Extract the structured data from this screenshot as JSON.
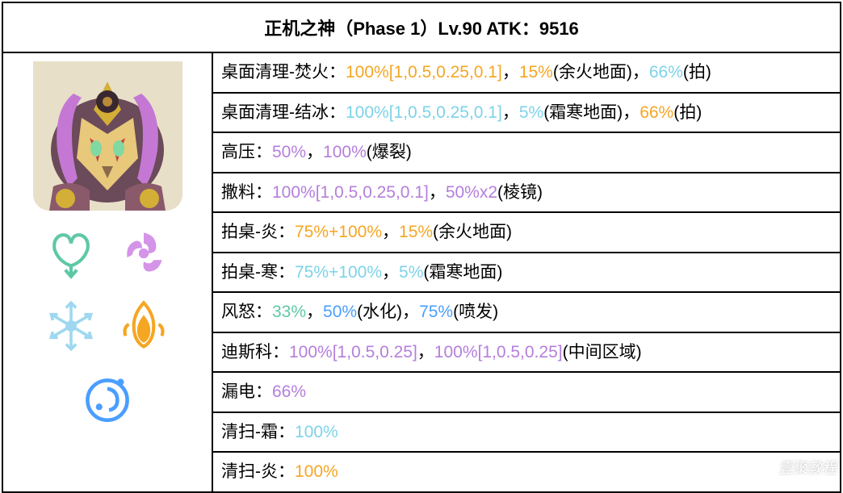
{
  "header": {
    "title": "正机之神（Phase 1）Lv.90 ATK：9516"
  },
  "colors": {
    "black": "#000000",
    "pyro": "#f5a623",
    "cryo": "#7dd3e8",
    "electro": "#b57edc",
    "anemo": "#5ec8a6",
    "hydro": "#4a9eff"
  },
  "elements": {
    "icons": [
      "anemo",
      "electro",
      "cryo",
      "pyro",
      "hydro"
    ],
    "icon_colors": {
      "anemo": "#5ec8a6",
      "electro": "#d494e8",
      "cryo": "#9ed8f0",
      "pyro": "#f5a623",
      "hydro": "#4a9eff"
    }
  },
  "skills": [
    {
      "name": "桌面清理-焚火：",
      "parts": [
        {
          "text": "100%[1,0.5,0.25,0.1]",
          "color": "pyro"
        },
        {
          "text": "，",
          "color": "black"
        },
        {
          "text": "15%",
          "color": "pyro"
        },
        {
          "text": "(余火地面)，",
          "color": "black"
        },
        {
          "text": "66%",
          "color": "cryo"
        },
        {
          "text": "(拍)",
          "color": "black"
        }
      ]
    },
    {
      "name": "桌面清理-结冰：",
      "parts": [
        {
          "text": "100%[1,0.5,0.25,0.1]",
          "color": "cryo"
        },
        {
          "text": "，",
          "color": "black"
        },
        {
          "text": "5%",
          "color": "cryo"
        },
        {
          "text": "(霜寒地面)，",
          "color": "black"
        },
        {
          "text": "66%",
          "color": "pyro"
        },
        {
          "text": "(拍)",
          "color": "black"
        }
      ]
    },
    {
      "name": "高压：",
      "parts": [
        {
          "text": "50%",
          "color": "electro"
        },
        {
          "text": "，",
          "color": "black"
        },
        {
          "text": "100%",
          "color": "electro"
        },
        {
          "text": "(爆裂)",
          "color": "black"
        }
      ]
    },
    {
      "name": "撒料：",
      "parts": [
        {
          "text": "100%[1,0.5,0.25,0.1]",
          "color": "electro"
        },
        {
          "text": "，",
          "color": "black"
        },
        {
          "text": "50%x2",
          "color": "electro"
        },
        {
          "text": "(棱镜)",
          "color": "black"
        }
      ]
    },
    {
      "name": "拍桌-炎：",
      "parts": [
        {
          "text": "75%+100%",
          "color": "pyro"
        },
        {
          "text": "，",
          "color": "black"
        },
        {
          "text": "15%",
          "color": "pyro"
        },
        {
          "text": "(余火地面)",
          "color": "black"
        }
      ]
    },
    {
      "name": "拍桌-寒：",
      "parts": [
        {
          "text": "75%+100%",
          "color": "cryo"
        },
        {
          "text": "，",
          "color": "black"
        },
        {
          "text": "5%",
          "color": "cryo"
        },
        {
          "text": "(霜寒地面)",
          "color": "black"
        }
      ]
    },
    {
      "name": "风怒：",
      "parts": [
        {
          "text": "33%",
          "color": "anemo"
        },
        {
          "text": "，",
          "color": "black"
        },
        {
          "text": "50%",
          "color": "hydro"
        },
        {
          "text": "(水化)，",
          "color": "black"
        },
        {
          "text": "75%",
          "color": "hydro"
        },
        {
          "text": "(喷发)",
          "color": "black"
        }
      ]
    },
    {
      "name": "迪斯科：",
      "parts": [
        {
          "text": "100%[1,0.5,0.25]",
          "color": "electro"
        },
        {
          "text": "，",
          "color": "black"
        },
        {
          "text": "100%[1,0.5,0.25]",
          "color": "electro"
        },
        {
          "text": "(中间区域)",
          "color": "black"
        }
      ]
    },
    {
      "name": "漏电：",
      "parts": [
        {
          "text": "66%",
          "color": "electro"
        }
      ]
    },
    {
      "name": "清扫-霜：",
      "parts": [
        {
          "text": "100%",
          "color": "cryo"
        }
      ]
    },
    {
      "name": "清扫-炎：",
      "parts": [
        {
          "text": "100%",
          "color": "pyro"
        }
      ]
    }
  ],
  "watermark": "壹聚教程"
}
